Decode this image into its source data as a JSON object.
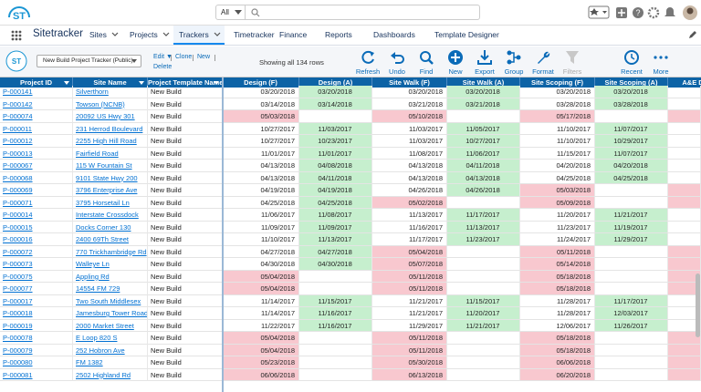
{
  "header": {
    "logo_text": "ST",
    "search_scope": "All",
    "app_name": "Sitetracker"
  },
  "nav": [
    "Sites",
    "Projects",
    "Trackers",
    "Timetracker",
    "Finance",
    "Reports",
    "Dashboards",
    "Template Designer"
  ],
  "toolbar": {
    "tracker": "New Build Project Tracker (Public)",
    "links": [
      "Edit ▼",
      "Clone",
      "New",
      "Delete"
    ],
    "row_count": "Showing all 134 rows",
    "buttons": [
      "Refresh",
      "Undo",
      "Find",
      "New",
      "Export",
      "Group",
      "Format",
      "Filters",
      "Recent",
      "More"
    ]
  },
  "table": {
    "columns": [
      "Project ID",
      "Site Name",
      "Project Template Name",
      "Design (F)",
      "Design (A)",
      "Site Walk (F)",
      "Site Walk (A)",
      "Site Scoping (F)",
      "Site Scoping (A)",
      "A&E Dr"
    ],
    "rows": [
      [
        "P-000141",
        "Silverthorn",
        "New Build",
        "03/20/2018",
        "03/20/2018",
        "03/20/2018",
        "03/20/2018",
        "03/20/2018",
        "03/20/2018"
      ],
      [
        "P-000142",
        "Towson (NCNB)",
        "New Build",
        "03/14/2018",
        "03/14/2018",
        "03/21/2018",
        "03/21/2018",
        "03/28/2018",
        "03/28/2018"
      ],
      [
        "P-000074",
        "20092 US Hwy 301",
        "New Build",
        "05/03/2018",
        "",
        "05/10/2018",
        "",
        "05/17/2018",
        ""
      ],
      [
        "P-000011",
        "231 Herrod Boulevard",
        "New Build",
        "10/27/2017",
        "11/03/2017",
        "11/03/2017",
        "11/05/2017",
        "11/10/2017",
        "11/07/2017"
      ],
      [
        "P-000012",
        "2255 High Hill Road",
        "New Build",
        "10/27/2017",
        "10/23/2017",
        "11/03/2017",
        "10/27/2017",
        "11/10/2017",
        "10/29/2017"
      ],
      [
        "P-000013",
        "Fairfield Road",
        "New Build",
        "11/01/2017",
        "11/01/2017",
        "11/08/2017",
        "11/06/2017",
        "11/15/2017",
        "11/07/2017"
      ],
      [
        "P-000067",
        "115 W Fountain St",
        "New Build",
        "04/13/2018",
        "04/08/2018",
        "04/13/2018",
        "04/11/2018",
        "04/20/2018",
        "04/20/2018"
      ],
      [
        "P-000068",
        "9101 State Hwy 200",
        "New Build",
        "04/13/2018",
        "04/11/2018",
        "04/13/2018",
        "04/13/2018",
        "04/25/2018",
        "04/25/2018"
      ],
      [
        "P-000069",
        "3796 Enterprise Ave",
        "New Build",
        "04/19/2018",
        "04/19/2018",
        "04/26/2018",
        "04/26/2018",
        "05/03/2018",
        ""
      ],
      [
        "P-000071",
        "3795 Horsetail Ln",
        "New Build",
        "04/25/2018",
        "04/25/2018",
        "05/02/2018",
        "",
        "05/09/2018",
        ""
      ],
      [
        "P-000014",
        "Interstate Crossdock",
        "New Build",
        "11/06/2017",
        "11/08/2017",
        "11/13/2017",
        "11/17/2017",
        "11/20/2017",
        "11/21/2017"
      ],
      [
        "P-000015",
        "Docks Corner 130",
        "New Build",
        "11/09/2017",
        "11/09/2017",
        "11/16/2017",
        "11/13/2017",
        "11/23/2017",
        "11/19/2017"
      ],
      [
        "P-000016",
        "2400 69Th Street",
        "New Build",
        "11/10/2017",
        "11/13/2017",
        "11/17/2017",
        "11/23/2017",
        "11/24/2017",
        "11/29/2017"
      ],
      [
        "P-000072",
        "770 Trickhambridge Rd",
        "New Build",
        "04/27/2018",
        "04/27/2018",
        "05/04/2018",
        "",
        "05/11/2018",
        ""
      ],
      [
        "P-000073",
        "Walleye Ln",
        "New Build",
        "04/30/2018",
        "04/30/2018",
        "05/07/2018",
        "",
        "05/14/2018",
        ""
      ],
      [
        "P-000075",
        "Appling Rd",
        "New Build",
        "05/04/2018",
        "",
        "05/11/2018",
        "",
        "05/18/2018",
        ""
      ],
      [
        "P-000077",
        "14554 FM 729",
        "New Build",
        "05/04/2018",
        "",
        "05/11/2018",
        "",
        "05/18/2018",
        ""
      ],
      [
        "P-000017",
        "Two South Middlesex",
        "New Build",
        "11/14/2017",
        "11/15/2017",
        "11/21/2017",
        "11/15/2017",
        "11/28/2017",
        "11/17/2017"
      ],
      [
        "P-000018",
        "Jamesburg Tower Road",
        "New Build",
        "11/14/2017",
        "11/16/2017",
        "11/21/2017",
        "11/20/2017",
        "11/28/2017",
        "12/03/2017"
      ],
      [
        "P-000019",
        "2000 Market Street",
        "New Build",
        "11/22/2017",
        "11/16/2017",
        "11/29/2017",
        "11/21/2017",
        "12/06/2017",
        "11/26/2017"
      ],
      [
        "P-000078",
        "E Loop 820 S",
        "New Build",
        "05/04/2018",
        "",
        "05/11/2018",
        "",
        "05/18/2018",
        ""
      ],
      [
        "P-000079",
        "252 Hobron Ave",
        "New Build",
        "05/04/2018",
        "",
        "05/11/2018",
        "",
        "05/18/2018",
        ""
      ],
      [
        "P-000080",
        "FM 1382",
        "New Build",
        "05/23/2018",
        "",
        "05/30/2018",
        "",
        "06/06/2018",
        ""
      ],
      [
        "P-000081",
        "2502 Highland Rd",
        "New Build",
        "06/06/2018",
        "",
        "06/13/2018",
        "",
        "06/20/2018",
        ""
      ]
    ]
  }
}
